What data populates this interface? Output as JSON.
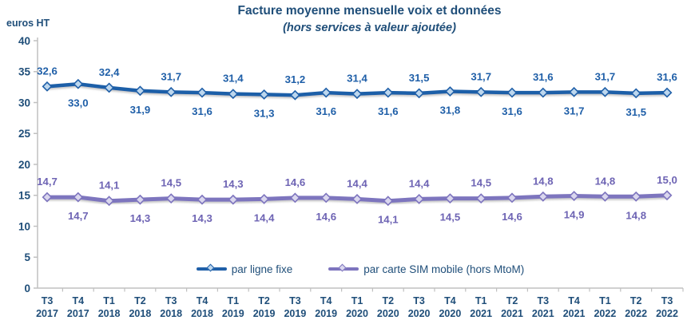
{
  "colors": {
    "accent_text": "#1F4E79",
    "axis_line": "#C0C0C0"
  },
  "chart_data": {
    "type": "line",
    "title": "Facture moyenne mensuelle voix et données",
    "subtitle": "(hors services à valeur ajoutée)",
    "ylabel": "euros HT",
    "xlabel": "",
    "ylim": [
      0,
      40
    ],
    "yticks": [
      0,
      5,
      10,
      15,
      20,
      25,
      30,
      35,
      40
    ],
    "grid": false,
    "legend_position": "bottom-inside",
    "decimal_separator": ",",
    "categories": [
      "T3 2017",
      "T4 2017",
      "T1 2018",
      "T2 2018",
      "T3 2018",
      "T4 2018",
      "T1 2019",
      "T2 2019",
      "T3 2019",
      "T4 2019",
      "T1 2020",
      "T2 2020",
      "T3 2020",
      "T4 2020",
      "T1 2021",
      "T2 2021",
      "T3 2021",
      "T4 2021",
      "T1 2022",
      "T2 2022",
      "T3 2022"
    ],
    "series": [
      {
        "name": "par ligne fixe",
        "marker": "diamond",
        "color": "#1F5FA8",
        "marker_fill": "#BDD7EE",
        "label_color": "#1F5FA8",
        "values": [
          32.6,
          33.0,
          32.4,
          31.9,
          31.7,
          31.6,
          31.4,
          31.3,
          31.2,
          31.6,
          31.4,
          31.6,
          31.5,
          31.8,
          31.7,
          31.6,
          31.6,
          31.7,
          31.7,
          31.5,
          31.6
        ]
      },
      {
        "name": "par carte SIM mobile (hors MtoM)",
        "marker": "diamond",
        "color": "#7D74BE",
        "marker_fill": "#DAD7EE",
        "label_color": "#6E64B4",
        "values": [
          14.7,
          14.7,
          14.1,
          14.3,
          14.5,
          14.3,
          14.3,
          14.4,
          14.6,
          14.6,
          14.4,
          14.1,
          14.4,
          14.5,
          14.5,
          14.6,
          14.8,
          14.9,
          14.8,
          14.8,
          15.0
        ]
      }
    ]
  }
}
